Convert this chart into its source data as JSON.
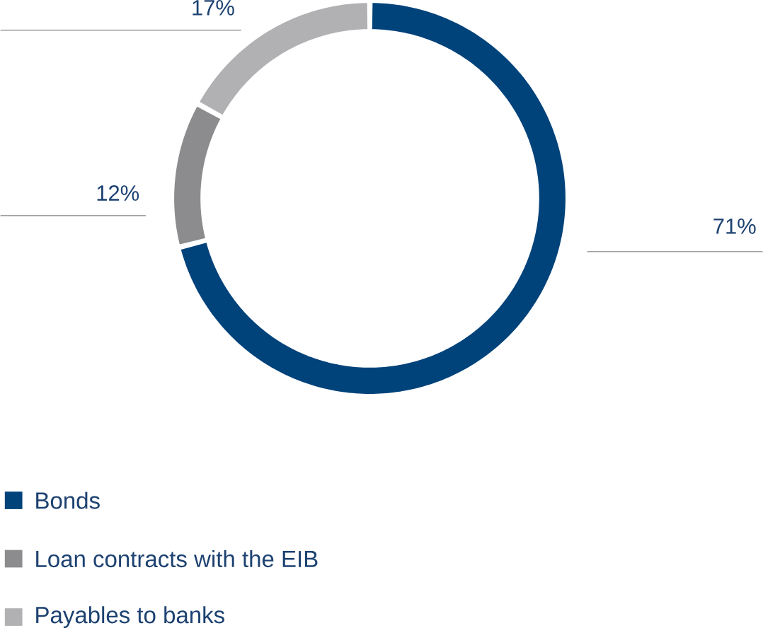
{
  "chart_data": {
    "type": "donut",
    "categories": [
      "Bonds",
      "Loan contracts with the EIB",
      "Payables to banks"
    ],
    "values": [
      71,
      12,
      17
    ],
    "colors": [
      "#00427a",
      "#8c8c8e",
      "#b1b1b3"
    ],
    "value_labels": [
      "71%",
      "12%",
      "17%"
    ],
    "legend": "bottom left"
  }
}
